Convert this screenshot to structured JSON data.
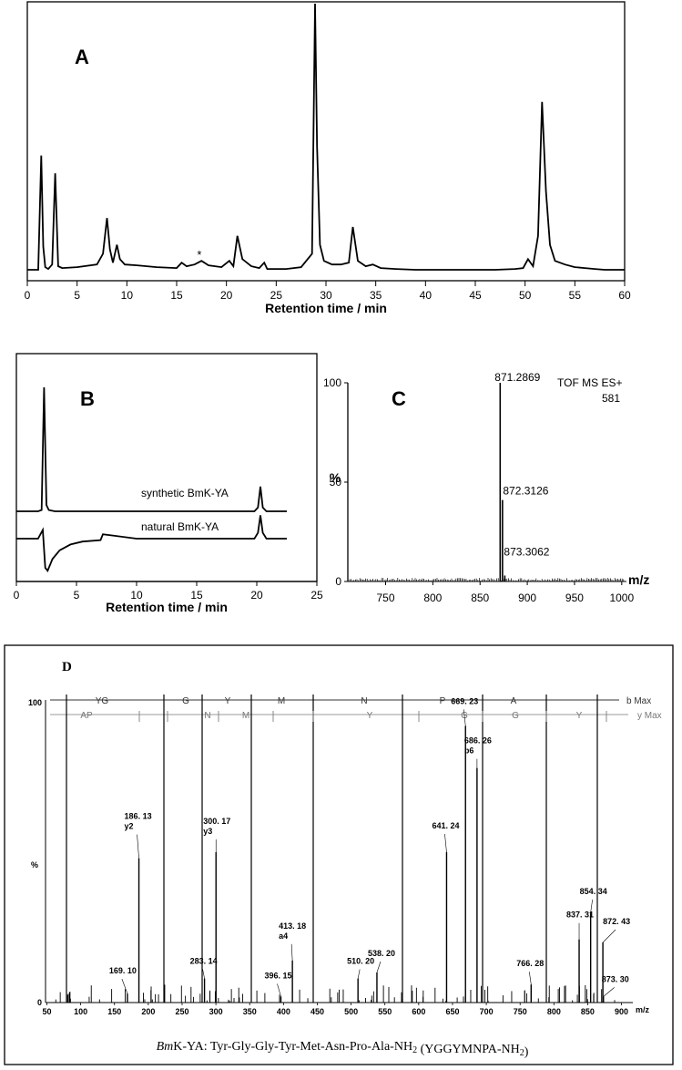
{
  "chart_data": [
    {
      "type": "line",
      "panel": "A",
      "xlabel": "Retention time / min",
      "xlim": [
        0,
        60
      ],
      "xticks": [
        "0",
        "5",
        "10",
        "15",
        "20",
        "25",
        "30",
        "35",
        "40",
        "45",
        "50",
        "55",
        "60"
      ],
      "annotation": "*",
      "annotation_x": 17.5,
      "series": [
        {
          "x": [
            0.0,
            1.1,
            1.4,
            1.6,
            1.8,
            2.1,
            2.5,
            2.8,
            3.1,
            3.5,
            5,
            7,
            7.6,
            8.0,
            8.3,
            8.6,
            9.0,
            9.3,
            9.8,
            11,
            13,
            15,
            15.5,
            16,
            16.8,
            17.5,
            18.2,
            19.5,
            20.3,
            20.7,
            21.1,
            21.6,
            22.5,
            23.3,
            23.8,
            24.1,
            24.5,
            26,
            27.5,
            28.6,
            28.9,
            29.1,
            29.4,
            29.8,
            30.6,
            31.5,
            32.3,
            32.7,
            33.2,
            34,
            34.7,
            35.5,
            37,
            39,
            41,
            43,
            45,
            47,
            49,
            49.8,
            50.3,
            50.8,
            51.3,
            51.7,
            52.1,
            52.5,
            53,
            54,
            55,
            56,
            57,
            58,
            59,
            60
          ],
          "y": [
            2,
            2,
            130,
            28,
            5,
            3,
            8,
            110,
            6,
            4,
            5,
            8,
            20,
            60,
            25,
            10,
            30,
            14,
            8,
            7,
            5,
            4,
            10,
            6,
            8,
            12,
            7,
            5,
            12,
            6,
            40,
            14,
            6,
            4,
            10,
            3,
            3,
            3,
            5,
            20,
            300,
            140,
            30,
            12,
            8,
            8,
            10,
            50,
            12,
            6,
            8,
            4,
            3,
            2,
            2,
            2,
            2,
            2,
            3,
            4,
            14,
            6,
            40,
            190,
            90,
            30,
            12,
            8,
            5,
            4,
            3,
            2,
            2,
            2
          ]
        }
      ]
    },
    {
      "type": "line",
      "panel": "B",
      "xlabel": "Retention time / min",
      "xlim": [
        0,
        25
      ],
      "xticks": [
        "0",
        "5",
        "10",
        "15",
        "20",
        "25"
      ],
      "series": [
        {
          "name": "synthetic BmK-YA",
          "x": [
            0,
            1.8,
            2.1,
            2.3,
            2.5,
            2.7,
            3.2,
            5,
            10,
            15,
            19.8,
            20.1,
            20.3,
            20.5,
            20.8,
            22.5
          ],
          "y": [
            0,
            0,
            1,
            100,
            5,
            1,
            0,
            0,
            0,
            0,
            0,
            3,
            20,
            3,
            0,
            0
          ]
        },
        {
          "name": "natural BmK-YA",
          "x": [
            0,
            1.8,
            2.2,
            2.4,
            2.6,
            3.0,
            3.6,
            4.5,
            5.5,
            7,
            7.2,
            10,
            15,
            19.8,
            20.1,
            20.3,
            20.5,
            20.8,
            22.5
          ],
          "y": [
            0,
            0,
            3,
            -10,
            -11,
            -7,
            -4,
            -2,
            -1,
            -0.5,
            1.5,
            0,
            0,
            0,
            2,
            8,
            2,
            0,
            0
          ]
        }
      ]
    },
    {
      "type": "bar",
      "panel": "C",
      "xlabel": "m/z",
      "ylabel": "%",
      "xlim": [
        710,
        1005
      ],
      "ylim": [
        0,
        100
      ],
      "xticks": [
        "750",
        "800",
        "850",
        "900",
        "950",
        "1000"
      ],
      "yticks": [
        "0",
        "50",
        "100"
      ],
      "annotations": [
        "TOF MS ES+",
        "581"
      ],
      "x": [
        871.2869,
        872.3126,
        873.3062
      ],
      "values": [
        100,
        41,
        3
      ],
      "labels": [
        "871.2869",
        "872.3126",
        "873.3062"
      ]
    },
    {
      "type": "bar",
      "panel": "D",
      "xlabel": "m/z",
      "ylabel": "%",
      "xlim": [
        48,
        910
      ],
      "ylim": [
        0,
        100
      ],
      "xticks": [
        "50",
        "100",
        "150",
        "200",
        "250",
        "300",
        "350",
        "400",
        "450",
        "500",
        "550",
        "600",
        "650",
        "700",
        "750",
        "800",
        "850",
        "900"
      ],
      "yticks": [
        "0",
        "100"
      ],
      "b_ladder": [
        "YG",
        "G",
        "Y",
        "M",
        "N",
        "P",
        "A"
      ],
      "y_ladder": [
        "AP",
        "N",
        "M",
        "Y",
        "G",
        "G",
        "Y"
      ],
      "b_max_label": "b Max",
      "y_max_label": "y Max",
      "x": [
        169.1,
        186.13,
        283.14,
        300.17,
        396.15,
        413.18,
        510.2,
        538.2,
        641.24,
        669.23,
        686.26,
        766.28,
        837.31,
        854.34,
        872.43,
        873.3
      ],
      "values": [
        3,
        48,
        8,
        50,
        2,
        14,
        8,
        10,
        50,
        92,
        78,
        6,
        21,
        30,
        20,
        2
      ],
      "labels": [
        "169. 10",
        "186. 13\ny2",
        "283. 14",
        "300. 17\ny3",
        "396. 15",
        "413. 18\na4",
        "510. 20",
        "538. 20",
        "641. 24",
        "669. 23",
        "686. 26\nb6",
        "766. 28",
        "837. 31",
        "854. 34",
        "872. 43",
        "873. 30"
      ]
    }
  ],
  "panels": {
    "A": "A",
    "B": "B",
    "C": "C",
    "D": "D"
  },
  "caption": "BmK-YA: Tyr-Gly-Gly-Tyr-Met-Asn-Pro-Ala-NH2 (YGGYMNPA-NH2)"
}
